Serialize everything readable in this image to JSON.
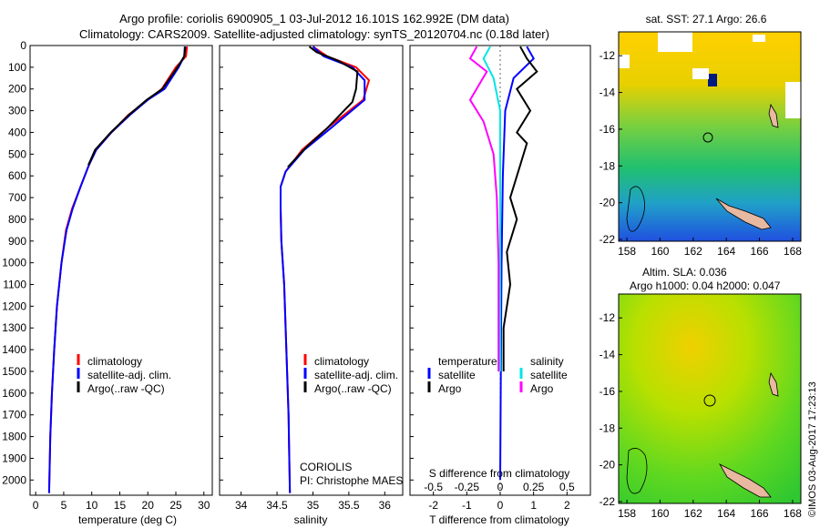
{
  "header": {
    "title_line1": "Argo profile: coriolis 6900905_1 03-Jul-2012 16.101S 162.992E (DM data)",
    "title_line2": "Climatology: CARS2009. Satellite-adjusted climatology: synTS_20120704.nc (0.18d later)"
  },
  "colors": {
    "clim": "#ff0000",
    "sat": "#0000ff",
    "argo": "#000000",
    "sat_sal": "#00e5e5",
    "argo_sal": "#ff00ff"
  },
  "chart_data": [
    {
      "type": "line",
      "id": "temperature",
      "xlabel": "temperature (deg C)",
      "xlim": [
        -1,
        31.5
      ],
      "ylim": [
        2070,
        0
      ],
      "xticks": [
        0,
        5,
        10,
        15,
        20,
        25,
        30
      ],
      "yticks": [
        0,
        100,
        200,
        300,
        400,
        500,
        600,
        700,
        800,
        900,
        1000,
        1100,
        1200,
        1300,
        1400,
        1500,
        1600,
        1700,
        1800,
        1900,
        2000
      ],
      "legend": [
        "climatology",
        "satellite-adj. clim.",
        "Argo(..raw -QC)"
      ],
      "series": [
        {
          "name": "climatology",
          "color": "#ff0000",
          "points": [
            [
              27.0,
              5
            ],
            [
              26.8,
              50
            ],
            [
              25.0,
              100
            ],
            [
              22.5,
              200
            ],
            [
              20.0,
              250
            ],
            [
              16.5,
              320
            ],
            [
              13.5,
              400
            ],
            [
              10.8,
              480
            ],
            [
              9.5,
              550
            ],
            [
              8.0,
              650
            ],
            [
              6.5,
              750
            ],
            [
              5.4,
              850
            ],
            [
              4.6,
              1000
            ],
            [
              3.8,
              1200
            ],
            [
              3.3,
              1400
            ],
            [
              2.9,
              1600
            ],
            [
              2.6,
              1800
            ],
            [
              2.45,
              2000
            ],
            [
              2.4,
              2060
            ]
          ]
        },
        {
          "name": "satellite-adj. clim.",
          "color": "#0000ff",
          "points": [
            [
              26.6,
              5
            ],
            [
              26.5,
              50
            ],
            [
              25.5,
              100
            ],
            [
              23.0,
              200
            ],
            [
              20.0,
              250
            ],
            [
              16.8,
              320
            ],
            [
              13.5,
              400
            ],
            [
              10.8,
              480
            ],
            [
              9.5,
              550
            ],
            [
              8.0,
              650
            ],
            [
              6.6,
              750
            ],
            [
              5.5,
              850
            ],
            [
              4.6,
              1000
            ],
            [
              3.8,
              1200
            ],
            [
              3.3,
              1400
            ],
            [
              2.9,
              1600
            ],
            [
              2.6,
              1800
            ],
            [
              2.45,
              2000
            ],
            [
              2.4,
              2060
            ]
          ]
        },
        {
          "name": "Argo(..raw -QC)",
          "color": "#000000",
          "points": [
            [
              26.7,
              5
            ],
            [
              26.5,
              50
            ],
            [
              25.3,
              100
            ],
            [
              22.6,
              200
            ],
            [
              19.8,
              250
            ],
            [
              16.6,
              320
            ],
            [
              13.4,
              400
            ],
            [
              10.6,
              480
            ],
            [
              9.4,
              550
            ]
          ]
        }
      ]
    },
    {
      "type": "line",
      "id": "salinity",
      "xlabel": "salinity",
      "xlim": [
        33.7,
        36.25
      ],
      "ylim": [
        2070,
        0
      ],
      "xticks": [
        34,
        34.5,
        35,
        35.5,
        36
      ],
      "legend": [
        "climatology",
        "satellite-adj. clim.",
        "Argo(..raw -QC)"
      ],
      "annotations": [
        "CORIOLIS",
        "PI: Christophe MAES"
      ],
      "series": [
        {
          "name": "climatology",
          "color": "#ff0000",
          "points": [
            [
              35.0,
              5
            ],
            [
              35.2,
              50
            ],
            [
              35.6,
              100
            ],
            [
              35.78,
              160
            ],
            [
              35.7,
              250
            ],
            [
              35.2,
              380
            ],
            [
              34.85,
              480
            ],
            [
              34.62,
              580
            ],
            [
              34.55,
              650
            ],
            [
              34.55,
              750
            ],
            [
              34.56,
              900
            ],
            [
              34.6,
              1100
            ],
            [
              34.62,
              1300
            ],
            [
              34.64,
              1500
            ],
            [
              34.66,
              1700
            ],
            [
              34.67,
              1900
            ],
            [
              34.68,
              2060
            ]
          ]
        },
        {
          "name": "satellite-adj. clim.",
          "color": "#0000ff",
          "points": [
            [
              35.0,
              5
            ],
            [
              35.15,
              50
            ],
            [
              35.55,
              100
            ],
            [
              35.72,
              160
            ],
            [
              35.72,
              250
            ],
            [
              35.25,
              380
            ],
            [
              34.88,
              480
            ],
            [
              34.62,
              580
            ],
            [
              34.55,
              650
            ],
            [
              34.55,
              750
            ],
            [
              34.56,
              900
            ],
            [
              34.6,
              1100
            ],
            [
              34.62,
              1300
            ],
            [
              34.64,
              1500
            ],
            [
              34.66,
              1700
            ],
            [
              34.67,
              1900
            ],
            [
              34.68,
              2060
            ]
          ]
        },
        {
          "name": "Argo(..raw -QC)",
          "color": "#000000",
          "points": [
            [
              34.95,
              5
            ],
            [
              35.05,
              30
            ],
            [
              35.35,
              70
            ],
            [
              35.62,
              120
            ],
            [
              35.6,
              200
            ],
            [
              35.55,
              260
            ],
            [
              35.2,
              380
            ],
            [
              34.9,
              470
            ],
            [
              34.65,
              560
            ]
          ]
        }
      ]
    },
    {
      "type": "line",
      "id": "difference",
      "xlabel_top": "S difference from climatology",
      "xlabel": "T difference from climatology",
      "xlim": [
        -2.7,
        2.7
      ],
      "ylim": [
        2070,
        0
      ],
      "xticks": [
        -2,
        -1,
        0,
        1,
        2
      ],
      "xticks_top": [
        -0.5,
        -0.25,
        0,
        0.25,
        0.5
      ],
      "legend_left_title": "temperature",
      "legend_right_title": "salinity",
      "legend_left": [
        "satellite",
        "Argo"
      ],
      "legend_right": [
        "satellite",
        "Argo"
      ],
      "series": [
        {
          "name": "satellite",
          "color": "#0000ff",
          "points": [
            [
              0.8,
              5
            ],
            [
              1.0,
              60
            ],
            [
              0.4,
              150
            ],
            [
              0.15,
              300
            ],
            [
              0.08,
              600
            ],
            [
              0.04,
              1000
            ],
            [
              0.02,
              1500
            ],
            [
              0.0,
              2000
            ]
          ]
        },
        {
          "name": "Argo",
          "color": "#000000",
          "points": [
            [
              0.6,
              5
            ],
            [
              0.8,
              60
            ],
            [
              1.1,
              120
            ],
            [
              0.5,
              200
            ],
            [
              0.9,
              300
            ],
            [
              0.5,
              400
            ],
            [
              0.8,
              450
            ],
            [
              0.6,
              550
            ],
            [
              0.3,
              700
            ],
            [
              0.5,
              800
            ],
            [
              0.2,
              950
            ],
            [
              0.3,
              1100
            ],
            [
              0.1,
              1300
            ],
            [
              0.1,
              1500
            ]
          ]
        },
        {
          "name": "satellite",
          "color": "#00e5e5",
          "points": [
            [
              -0.3,
              5
            ],
            [
              -0.5,
              60
            ],
            [
              -0.2,
              150
            ],
            [
              0.0,
              300
            ],
            [
              0.0,
              600
            ],
            [
              0.0,
              1000
            ],
            [
              0.0,
              1500
            ]
          ]
        },
        {
          "name": "Argo",
          "color": "#ff00ff",
          "points": [
            [
              -0.7,
              5
            ],
            [
              -0.9,
              60
            ],
            [
              -0.4,
              120
            ],
            [
              -0.9,
              250
            ],
            [
              -0.5,
              350
            ],
            [
              -0.2,
              500
            ],
            [
              -0.1,
              700
            ],
            [
              -0.05,
              1000
            ],
            [
              -0.05,
              1500
            ]
          ]
        }
      ]
    }
  ],
  "maps": {
    "top": {
      "title": "sat. SST: 27.1 Argo: 26.6",
      "xticks": [
        158,
        160,
        162,
        164,
        166,
        168
      ],
      "yticks": [
        -12,
        -14,
        -16,
        -18,
        -20,
        -22
      ]
    },
    "bottom": {
      "title_line1": "Altim. SLA: 0.036",
      "title_line2": "Argo h1000: 0.04 h2000: 0.047",
      "xticks": [
        158,
        160,
        162,
        164,
        166,
        168
      ],
      "yticks": [
        -12,
        -14,
        -16,
        -18,
        -20,
        -22
      ]
    }
  },
  "credit": "©IMOS 03-Aug-2017 17:23:13"
}
